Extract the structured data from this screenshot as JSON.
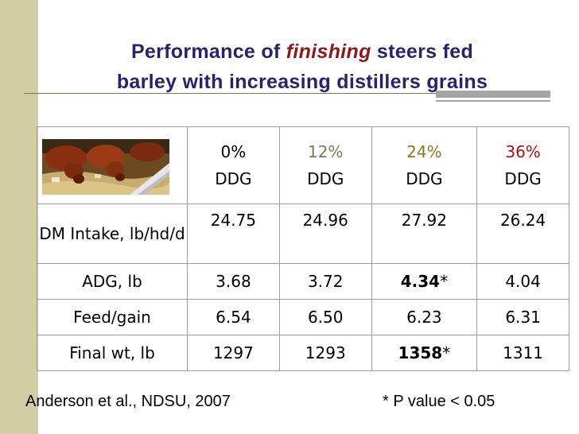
{
  "title": {
    "line1_pre": "Performance of ",
    "line1_em": "finishing",
    "line1_post": " steers fed",
    "line2": "barley with increasing distillers grains"
  },
  "table": {
    "headers": [
      {
        "pct": "0%",
        "unit": "DDG"
      },
      {
        "pct": "12%",
        "unit": "DDG"
      },
      {
        "pct": "24%",
        "unit": "DDG"
      },
      {
        "pct": "36%",
        "unit": "DDG"
      }
    ],
    "rows": [
      {
        "label": "DM Intake, lb/hd/d",
        "values": [
          "24.75",
          "24.96",
          "27.92",
          "26.24"
        ],
        "marks": [
          "",
          "",
          "",
          ""
        ]
      },
      {
        "label": "ADG, lb",
        "values": [
          "3.68",
          "3.72",
          "4.34",
          "4.04"
        ],
        "marks": [
          "",
          "",
          "*",
          ""
        ]
      },
      {
        "label": "Feed/gain",
        "values": [
          "6.54",
          "6.50",
          "6.23",
          "6.31"
        ],
        "marks": [
          "",
          "",
          "",
          ""
        ]
      },
      {
        "label": "Final wt, lb",
        "values": [
          "1297",
          "1293",
          "1358",
          "1311"
        ],
        "marks": [
          "",
          "",
          "*",
          ""
        ]
      }
    ]
  },
  "footer": {
    "citation": "Anderson et al., NDSU, 2007",
    "note": "* P value < 0.05"
  },
  "colors": {
    "title": "#2b1f6e",
    "title_emphasis": "#8b1a1a",
    "sidebar": "#cfcfa3",
    "header_12": "#7a7a52",
    "header_24": "#8a7a22",
    "header_36": "#b01010"
  }
}
